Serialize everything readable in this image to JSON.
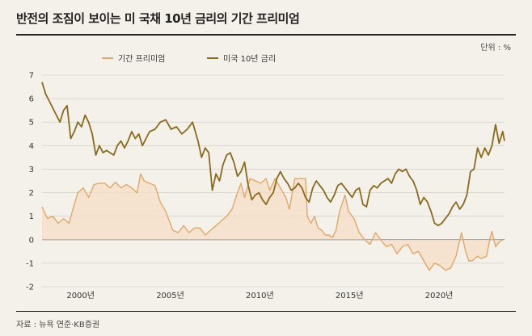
{
  "title": "반전의 조짐이 보이는 미 국채 10년 금리의 기간 프리미엄",
  "unit": "단위 : %",
  "source": "자료 : 뉴욕 연준·KB증권",
  "colors": {
    "term_premium": "#e0a86a",
    "yield10y": "#8a6a1e",
    "fill": "#f6dcc6"
  },
  "chart_data": {
    "type": "line",
    "title": "반전의 조짐이 보이는 미 국채 10년 금리의 기간 프리미엄",
    "ylim": [
      -2,
      7
    ],
    "xlim": [
      1998.0,
      2023.8
    ],
    "yticks": [
      "7",
      "6",
      "5",
      "4",
      "3",
      "2",
      "1",
      "0",
      "-1",
      "-2"
    ],
    "xticks": [
      {
        "label": "2000년",
        "year": 2000
      },
      {
        "label": "2005년",
        "year": 2005
      },
      {
        "label": "2010년",
        "year": 2010
      },
      {
        "label": "2015년",
        "year": 2015
      },
      {
        "label": "2020년",
        "year": 2020
      }
    ],
    "legend_placement": "top",
    "series": [
      {
        "name": "기간 프리미엄",
        "data": [
          [
            1998.0,
            1.4
          ],
          [
            1998.3,
            0.9
          ],
          [
            1998.6,
            1.0
          ],
          [
            1998.9,
            0.7
          ],
          [
            1999.2,
            0.9
          ],
          [
            1999.5,
            0.7
          ],
          [
            1999.8,
            1.5
          ],
          [
            2000.0,
            2.0
          ],
          [
            2000.3,
            2.2
          ],
          [
            2000.6,
            1.8
          ],
          [
            2000.9,
            2.35
          ],
          [
            2001.2,
            2.4
          ],
          [
            2001.5,
            2.4
          ],
          [
            2001.8,
            2.2
          ],
          [
            2002.1,
            2.45
          ],
          [
            2002.4,
            2.2
          ],
          [
            2002.7,
            2.35
          ],
          [
            2003.0,
            2.2
          ],
          [
            2003.3,
            2.0
          ],
          [
            2003.5,
            2.8
          ],
          [
            2003.7,
            2.5
          ],
          [
            2004.0,
            2.4
          ],
          [
            2004.3,
            2.3
          ],
          [
            2004.6,
            1.6
          ],
          [
            2004.9,
            1.2
          ],
          [
            2005.1,
            0.8
          ],
          [
            2005.3,
            0.4
          ],
          [
            2005.6,
            0.3
          ],
          [
            2005.9,
            0.6
          ],
          [
            2006.2,
            0.3
          ],
          [
            2006.5,
            0.5
          ],
          [
            2006.8,
            0.5
          ],
          [
            2007.1,
            0.2
          ],
          [
            2007.4,
            0.4
          ],
          [
            2007.7,
            0.6
          ],
          [
            2008.0,
            0.8
          ],
          [
            2008.3,
            1.0
          ],
          [
            2008.6,
            1.3
          ],
          [
            2008.9,
            2.0
          ],
          [
            2009.1,
            2.4
          ],
          [
            2009.3,
            1.8
          ],
          [
            2009.6,
            2.6
          ],
          [
            2009.9,
            2.5
          ],
          [
            2010.2,
            2.4
          ],
          [
            2010.5,
            2.6
          ],
          [
            2010.7,
            2.1
          ],
          [
            2011.0,
            2.6
          ],
          [
            2011.3,
            2.2
          ],
          [
            2011.6,
            1.8
          ],
          [
            2011.8,
            1.3
          ],
          [
            2012.1,
            2.6
          ],
          [
            2012.4,
            2.6
          ],
          [
            2012.7,
            2.6
          ],
          [
            2012.8,
            1.0
          ],
          [
            2013.0,
            0.7
          ],
          [
            2013.2,
            1.0
          ],
          [
            2013.4,
            0.5
          ],
          [
            2013.6,
            0.4
          ],
          [
            2013.8,
            0.2
          ],
          [
            2014.0,
            0.2
          ],
          [
            2014.2,
            0.1
          ],
          [
            2014.4,
            0.4
          ],
          [
            2014.6,
            1.2
          ],
          [
            2014.9,
            1.9
          ],
          [
            2015.1,
            1.2
          ],
          [
            2015.4,
            0.9
          ],
          [
            2015.7,
            0.3
          ],
          [
            2016.0,
            0.0
          ],
          [
            2016.3,
            -0.2
          ],
          [
            2016.6,
            0.3
          ],
          [
            2016.9,
            0.0
          ],
          [
            2017.2,
            -0.3
          ],
          [
            2017.5,
            -0.2
          ],
          [
            2017.8,
            -0.6
          ],
          [
            2018.1,
            -0.3
          ],
          [
            2018.4,
            -0.2
          ],
          [
            2018.7,
            -0.6
          ],
          [
            2019.0,
            -0.5
          ],
          [
            2019.3,
            -0.9
          ],
          [
            2019.6,
            -1.3
          ],
          [
            2019.9,
            -1.0
          ],
          [
            2020.2,
            -1.1
          ],
          [
            2020.5,
            -1.3
          ],
          [
            2020.8,
            -1.2
          ],
          [
            2021.1,
            -0.7
          ],
          [
            2021.4,
            0.3
          ],
          [
            2021.6,
            -0.4
          ],
          [
            2021.8,
            -0.9
          ],
          [
            2022.0,
            -0.9
          ],
          [
            2022.3,
            -0.7
          ],
          [
            2022.5,
            -0.8
          ],
          [
            2022.8,
            -0.7
          ],
          [
            2023.0,
            0.1
          ],
          [
            2023.1,
            0.35
          ],
          [
            2023.3,
            -0.3
          ],
          [
            2023.5,
            -0.1
          ],
          [
            2023.7,
            0.0
          ]
        ]
      },
      {
        "name": "미국 10년 금리",
        "data": [
          [
            1998.0,
            6.7
          ],
          [
            1998.2,
            6.2
          ],
          [
            1998.4,
            5.9
          ],
          [
            1998.6,
            5.6
          ],
          [
            1998.8,
            5.3
          ],
          [
            1999.0,
            5.0
          ],
          [
            1999.2,
            5.5
          ],
          [
            1999.4,
            5.7
          ],
          [
            1999.6,
            4.3
          ],
          [
            1999.8,
            4.6
          ],
          [
            2000.0,
            5.0
          ],
          [
            2000.2,
            4.8
          ],
          [
            2000.4,
            5.3
          ],
          [
            2000.6,
            5.0
          ],
          [
            2000.8,
            4.5
          ],
          [
            2001.0,
            3.6
          ],
          [
            2001.2,
            4.0
          ],
          [
            2001.4,
            3.7
          ],
          [
            2001.6,
            3.8
          ],
          [
            2001.8,
            3.7
          ],
          [
            2002.0,
            3.6
          ],
          [
            2002.2,
            4.0
          ],
          [
            2002.4,
            4.2
          ],
          [
            2002.6,
            3.9
          ],
          [
            2002.8,
            4.2
          ],
          [
            2003.0,
            4.6
          ],
          [
            2003.2,
            4.3
          ],
          [
            2003.4,
            4.5
          ],
          [
            2003.6,
            4.0
          ],
          [
            2003.8,
            4.3
          ],
          [
            2004.0,
            4.6
          ],
          [
            2004.3,
            4.7
          ],
          [
            2004.6,
            5.0
          ],
          [
            2004.9,
            5.1
          ],
          [
            2005.2,
            4.7
          ],
          [
            2005.5,
            4.8
          ],
          [
            2005.8,
            4.5
          ],
          [
            2006.1,
            4.7
          ],
          [
            2006.4,
            5.0
          ],
          [
            2006.7,
            4.2
          ],
          [
            2006.9,
            3.5
          ],
          [
            2007.1,
            3.9
          ],
          [
            2007.3,
            3.7
          ],
          [
            2007.5,
            2.1
          ],
          [
            2007.7,
            2.8
          ],
          [
            2007.9,
            2.5
          ],
          [
            2008.1,
            3.2
          ],
          [
            2008.3,
            3.6
          ],
          [
            2008.5,
            3.7
          ],
          [
            2008.7,
            3.3
          ],
          [
            2008.9,
            2.7
          ],
          [
            2009.1,
            2.9
          ],
          [
            2009.3,
            3.3
          ],
          [
            2009.5,
            2.3
          ],
          [
            2009.7,
            1.7
          ],
          [
            2009.9,
            1.9
          ],
          [
            2010.1,
            2.0
          ],
          [
            2010.3,
            1.7
          ],
          [
            2010.5,
            1.5
          ],
          [
            2010.7,
            1.8
          ],
          [
            2010.9,
            2.0
          ],
          [
            2011.1,
            2.6
          ],
          [
            2011.3,
            2.9
          ],
          [
            2011.5,
            2.6
          ],
          [
            2011.7,
            2.4
          ],
          [
            2011.9,
            2.1
          ],
          [
            2012.1,
            2.2
          ],
          [
            2012.3,
            2.4
          ],
          [
            2012.5,
            2.2
          ],
          [
            2012.7,
            1.8
          ],
          [
            2012.9,
            1.6
          ],
          [
            2013.1,
            2.2
          ],
          [
            2013.3,
            2.5
          ],
          [
            2013.5,
            2.3
          ],
          [
            2013.7,
            2.1
          ],
          [
            2013.9,
            1.8
          ],
          [
            2014.1,
            1.6
          ],
          [
            2014.3,
            1.9
          ],
          [
            2014.5,
            2.3
          ],
          [
            2014.7,
            2.4
          ],
          [
            2014.9,
            2.2
          ],
          [
            2015.1,
            2.0
          ],
          [
            2015.3,
            1.8
          ],
          [
            2015.5,
            2.1
          ],
          [
            2015.7,
            2.2
          ],
          [
            2015.9,
            1.5
          ],
          [
            2016.1,
            1.4
          ],
          [
            2016.3,
            2.1
          ],
          [
            2016.5,
            2.3
          ],
          [
            2016.7,
            2.2
          ],
          [
            2016.9,
            2.4
          ],
          [
            2017.1,
            2.5
          ],
          [
            2017.3,
            2.6
          ],
          [
            2017.5,
            2.4
          ],
          [
            2017.7,
            2.8
          ],
          [
            2017.9,
            3.0
          ],
          [
            2018.1,
            2.9
          ],
          [
            2018.3,
            3.0
          ],
          [
            2018.5,
            2.7
          ],
          [
            2018.7,
            2.5
          ],
          [
            2018.9,
            2.1
          ],
          [
            2019.1,
            1.5
          ],
          [
            2019.3,
            1.8
          ],
          [
            2019.5,
            1.6
          ],
          [
            2019.7,
            1.2
          ],
          [
            2019.9,
            0.7
          ],
          [
            2020.1,
            0.6
          ],
          [
            2020.3,
            0.7
          ],
          [
            2020.5,
            0.9
          ],
          [
            2020.7,
            1.1
          ],
          [
            2020.9,
            1.4
          ],
          [
            2021.1,
            1.6
          ],
          [
            2021.3,
            1.3
          ],
          [
            2021.5,
            1.5
          ],
          [
            2021.7,
            1.9
          ],
          [
            2021.9,
            2.9
          ],
          [
            2022.1,
            3.0
          ],
          [
            2022.3,
            3.9
          ],
          [
            2022.5,
            3.5
          ],
          [
            2022.7,
            3.9
          ],
          [
            2022.9,
            3.6
          ],
          [
            2023.1,
            4.0
          ],
          [
            2023.3,
            4.9
          ],
          [
            2023.5,
            4.1
          ],
          [
            2023.7,
            4.6
          ],
          [
            2023.8,
            4.2
          ]
        ]
      }
    ]
  }
}
